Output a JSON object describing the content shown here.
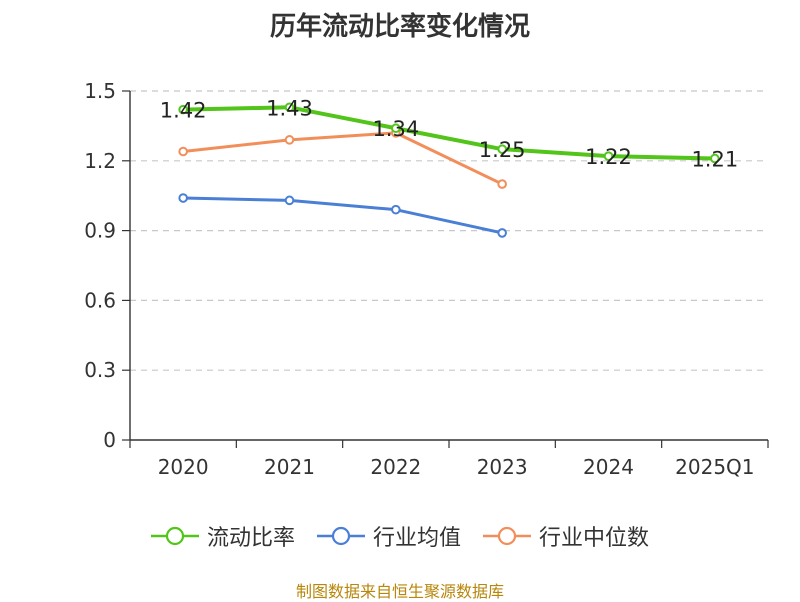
{
  "chart_data": {
    "type": "line",
    "title": "历年流动比率变化情况",
    "categories": [
      "2020",
      "2021",
      "2022",
      "2023",
      "2024",
      "2025Q1"
    ],
    "ylim": [
      0,
      1.5
    ],
    "yticks": [
      "0",
      "0.3",
      "0.6",
      "0.9",
      "1.2",
      "1.5"
    ],
    "grid": true,
    "legend_position": "bottom",
    "series": [
      {
        "name": "流动比率",
        "color": "#52c41a",
        "values": [
          1.42,
          1.43,
          1.34,
          1.25,
          1.22,
          1.21
        ],
        "labels": [
          "1.42",
          "1.43",
          "1.34",
          "1.25",
          "1.22",
          "1.21"
        ]
      },
      {
        "name": "行业均值",
        "color": "#4a7fd6",
        "values": [
          1.04,
          1.03,
          0.99,
          0.89,
          null,
          null
        ]
      },
      {
        "name": "行业中位数",
        "color": "#f28e5a",
        "values": [
          1.24,
          1.29,
          1.32,
          1.1,
          null,
          null
        ]
      }
    ]
  },
  "source": "制图数据来自恒生聚源数据库"
}
